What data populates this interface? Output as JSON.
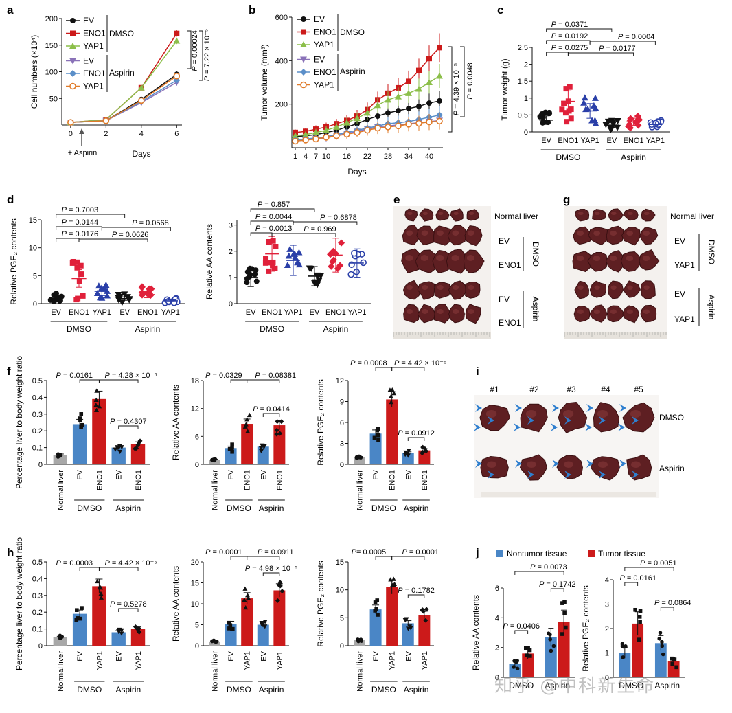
{
  "figure": {
    "watermark": "知乎 @中科新生命",
    "panels": {
      "a": "a",
      "b": "b",
      "c": "c",
      "d": "d",
      "e": "e",
      "f": "f",
      "g": "g",
      "h": "h",
      "i": "i",
      "j": "j"
    }
  },
  "chart_data": [
    {
      "id": "a",
      "type": "line",
      "ylabel": "Cell numbers (×10⁴)",
      "xlabel": "Days",
      "x": [
        0,
        2,
        4,
        6
      ],
      "ylim": [
        0,
        200
      ],
      "yticks": [
        50,
        100,
        150,
        200
      ],
      "xticks": [
        0,
        2,
        4,
        6
      ],
      "annotation": "+ Aspirin",
      "groups": [
        "DMSO",
        "Aspirin"
      ],
      "series": [
        {
          "name": "EV",
          "group": "DMSO",
          "color": "#111111",
          "marker": "circle",
          "values": [
            5,
            8,
            48,
            95
          ]
        },
        {
          "name": "ENO1",
          "group": "DMSO",
          "color": "#cc1a1a",
          "marker": "square",
          "values": [
            5,
            10,
            70,
            172
          ]
        },
        {
          "name": "YAP1",
          "group": "DMSO",
          "color": "#8cbf4a",
          "marker": "triangle",
          "values": [
            5,
            10,
            70,
            158
          ]
        },
        {
          "name": "EV",
          "group": "Aspirin",
          "color": "#8a72b8",
          "marker": "tri-down",
          "values": [
            5,
            8,
            42,
            80
          ]
        },
        {
          "name": "ENO1",
          "group": "Aspirin",
          "color": "#5b8fc9",
          "marker": "diamond",
          "values": [
            5,
            8,
            44,
            84
          ]
        },
        {
          "name": "YAP1",
          "group": "Aspirin",
          "color": "#e07b2a",
          "marker": "circle-open",
          "values": [
            5,
            8,
            46,
            92
          ]
        }
      ],
      "pvalues": [
        "P = 0.00024",
        "P = 7.22 × 10⁻⁵"
      ]
    },
    {
      "id": "b",
      "type": "line",
      "ylabel": "Tumor volume (mm³)",
      "xlabel": "Days",
      "x": [
        1,
        4,
        7,
        10,
        13,
        16,
        19,
        22,
        25,
        28,
        31,
        34,
        37,
        40,
        43
      ],
      "xticks": [
        1,
        4,
        7,
        10,
        16,
        22,
        28,
        34,
        40
      ],
      "ylim": [
        0,
        600
      ],
      "yticks": [
        200,
        400,
        600
      ],
      "groups": [
        "DMSO",
        "Aspirin"
      ],
      "series": [
        {
          "name": "EV",
          "group": "DMSO",
          "color": "#111111",
          "marker": "circle",
          "values": [
            50,
            55,
            60,
            70,
            80,
            95,
            110,
            130,
            145,
            160,
            170,
            180,
            190,
            205,
            215
          ]
        },
        {
          "name": "ENO1",
          "group": "DMSO",
          "color": "#cc1a1a",
          "marker": "square",
          "values": [
            70,
            75,
            85,
            95,
            110,
            125,
            145,
            175,
            220,
            250,
            275,
            305,
            355,
            410,
            460
          ]
        },
        {
          "name": "YAP1",
          "group": "DMSO",
          "color": "#8cbf4a",
          "marker": "triangle",
          "values": [
            55,
            60,
            70,
            80,
            95,
            115,
            135,
            160,
            195,
            220,
            235,
            250,
            270,
            300,
            330
          ]
        },
        {
          "name": "EV",
          "group": "Aspirin",
          "color": "#8a72b8",
          "marker": "tri-down",
          "values": [
            30,
            35,
            40,
            45,
            55,
            65,
            75,
            85,
            95,
            100,
            105,
            110,
            115,
            120,
            125
          ]
        },
        {
          "name": "ENO1",
          "group": "Aspirin",
          "color": "#5b8fc9",
          "marker": "diamond",
          "values": [
            35,
            40,
            45,
            50,
            60,
            70,
            80,
            90,
            100,
            110,
            115,
            120,
            130,
            140,
            150
          ]
        },
        {
          "name": "YAP1",
          "group": "Aspirin",
          "color": "#e07b2a",
          "marker": "circle-open",
          "values": [
            30,
            35,
            40,
            48,
            55,
            62,
            70,
            80,
            90,
            95,
            100,
            108,
            112,
            118,
            122
          ]
        }
      ],
      "pvalues": [
        "P = 4.39 × 10⁻⁵",
        "P = 0.0048"
      ]
    },
    {
      "id": "c",
      "type": "scatter",
      "ylabel": "Tumor weight (g)",
      "ylim": [
        0,
        2.5
      ],
      "yticks": [
        0,
        0.5,
        1.0,
        1.5,
        2.0,
        2.5
      ],
      "categories": [
        "EV",
        "ENO1",
        "YAP1",
        "EV",
        "ENO1",
        "YAP1"
      ],
      "groups": [
        "DMSO",
        "Aspirin"
      ],
      "means": [
        0.35,
        0.9,
        0.62,
        0.2,
        0.3,
        0.22
      ],
      "pvalues": [
        "P = 0.0371",
        "P = 0.0192",
        "P = 0.0275",
        "P = 0.0004",
        "P = 0.0177"
      ]
    },
    {
      "id": "d1",
      "type": "scatter",
      "ylabel": "Relative PGE₂ contents",
      "ylim": [
        0,
        15
      ],
      "yticks": [
        0,
        5,
        10,
        15
      ],
      "categories": [
        "EV",
        "ENO1",
        "YAP1",
        "EV",
        "ENO1",
        "YAP1"
      ],
      "groups": [
        "DMSO",
        "Aspirin"
      ],
      "means": [
        1.0,
        4.5,
        2.2,
        0.9,
        1.6,
        0.5
      ],
      "pvalues": [
        "P = 0.7003",
        "P = 0.0144",
        "P = 0.0176",
        "P = 0.0568",
        "P = 0.0626"
      ]
    },
    {
      "id": "d2",
      "type": "scatter",
      "ylabel": "Relative AA contents",
      "ylim": [
        0,
        3.2
      ],
      "yticks": [
        0,
        1.0,
        2.0,
        3.0
      ],
      "categories": [
        "EV",
        "ENO1",
        "YAP1",
        "EV",
        "ENO1",
        "YAP1"
      ],
      "groups": [
        "DMSO",
        "Aspirin"
      ],
      "means": [
        1.0,
        1.9,
        1.65,
        1.05,
        1.85,
        1.55
      ],
      "pvalues": [
        "P = 0.857",
        "P = 0.0044",
        "P = 0.0013",
        "P = 0.6878",
        "P = 0.969"
      ]
    },
    {
      "id": "f1",
      "type": "bar",
      "ylabel": "Percentage liver to body weight ratio",
      "ylim": [
        0,
        0.5
      ],
      "yticks": [
        0,
        0.1,
        0.2,
        0.3,
        0.4,
        0.5
      ],
      "categories": [
        "Normal liver",
        "EV",
        "ENO1",
        "EV",
        "ENO1"
      ],
      "groups": [
        "DMSO",
        "Aspirin"
      ],
      "values": [
        0.055,
        0.24,
        0.39,
        0.1,
        0.12
      ],
      "pvalues": [
        "P = 0.0161",
        "P = 4.28 × 10⁻⁵",
        "P = 0.4307"
      ]
    },
    {
      "id": "f2",
      "type": "bar",
      "ylabel": "Relative AA contents",
      "ylim": [
        0,
        18
      ],
      "yticks": [
        0,
        6,
        12,
        18
      ],
      "categories": [
        "Normal liver",
        "EV",
        "ENO1",
        "EV",
        "ENO1"
      ],
      "groups": [
        "DMSO",
        "Aspirin"
      ],
      "values": [
        1.0,
        3.5,
        8.7,
        3.8,
        8.4
      ],
      "pvalues": [
        "P = 0.0329",
        "P = 0.08381",
        "P = 0.0414"
      ]
    },
    {
      "id": "f3",
      "type": "bar",
      "ylabel": "Relative PGE₂ contents",
      "ylim": [
        0,
        12
      ],
      "yticks": [
        0,
        3,
        6,
        9,
        12
      ],
      "categories": [
        "Normal liver",
        "EV",
        "ENO1",
        "EV",
        "ENO1"
      ],
      "groups": [
        "DMSO",
        "Aspirin"
      ],
      "values": [
        1.0,
        4.4,
        9.3,
        1.6,
        2.0
      ],
      "pvalues": [
        "P = 0.0008",
        "P = 4.42 × 10⁻⁵",
        "P = 0.0912"
      ]
    },
    {
      "id": "h1",
      "type": "bar",
      "ylabel": "Percentage liver to body weight ratio",
      "ylim": [
        0,
        0.5
      ],
      "yticks": [
        0,
        0.1,
        0.2,
        0.3,
        0.4,
        0.5
      ],
      "categories": [
        "Normal liver",
        "EV",
        "YAP1",
        "EV",
        "YAP1"
      ],
      "groups": [
        "DMSO",
        "Aspirin"
      ],
      "values": [
        0.05,
        0.19,
        0.355,
        0.08,
        0.1
      ],
      "pvalues": [
        "P = 0.0003",
        "P = 4.42 × 10⁻⁵",
        "P = 0.5278"
      ]
    },
    {
      "id": "h2",
      "type": "bar",
      "ylabel": "Relative AA contents",
      "ylim": [
        0,
        20
      ],
      "yticks": [
        0,
        5,
        10,
        15,
        20
      ],
      "categories": [
        "Normal liver",
        "EV",
        "YAP1",
        "EV",
        "YAP1"
      ],
      "groups": [
        "DMSO",
        "Aspirin"
      ],
      "values": [
        1.0,
        5.2,
        11.3,
        5.0,
        13.2
      ],
      "pvalues": [
        "P = 0.0001",
        "P = 0.0911",
        "P = 4.98 × 10⁻⁵"
      ]
    },
    {
      "id": "h3",
      "type": "bar",
      "ylabel": "Relative PGE₂ contents",
      "ylim": [
        0,
        15
      ],
      "yticks": [
        0,
        5,
        10,
        15
      ],
      "categories": [
        "Normal liver",
        "EV",
        "YAP1",
        "EV",
        "YAP1"
      ],
      "groups": [
        "DMSO",
        "Aspirin"
      ],
      "values": [
        1.0,
        6.5,
        10.5,
        4.0,
        5.5
      ],
      "pvalues": [
        "P= 0.0005",
        "P = 0.0001",
        "P = 0.1782"
      ]
    },
    {
      "id": "j1",
      "type": "bar",
      "ylabel": "Relative AA contents",
      "ylim": [
        0,
        6
      ],
      "yticks": [
        0,
        2,
        4,
        6
      ],
      "categories": [
        "DMSO",
        "Aspirin"
      ],
      "series": [
        {
          "name": "Nontumor tissue",
          "color": "#4a86c6",
          "values": [
            0.9,
            2.7
          ]
        },
        {
          "name": "Tumor tissue",
          "color": "#cc1a1a",
          "values": [
            1.6,
            3.7
          ]
        }
      ],
      "pvalues": [
        "P = 0.0073",
        "P = 0.1742",
        "P = 0.0406"
      ]
    },
    {
      "id": "j2",
      "type": "bar",
      "ylabel": "Relative PGE₂ contents",
      "ylim": [
        0,
        4
      ],
      "yticks": [
        0,
        1,
        2,
        3,
        4
      ],
      "categories": [
        "DMSO",
        "Aspirin"
      ],
      "series": [
        {
          "name": "Nontumor tissue",
          "color": "#4a86c6",
          "values": [
            1.0,
            1.4
          ]
        },
        {
          "name": "Tumor tissue",
          "color": "#cc1a1a",
          "values": [
            2.2,
            0.65
          ]
        }
      ],
      "pvalues": [
        "P = 0.0051",
        "P = 0.0161",
        "P = 0.0864"
      ]
    }
  ],
  "photos": {
    "e": {
      "labels": [
        "Normal liver",
        "EV",
        "ENO1",
        "EV",
        "ENO1"
      ],
      "groups": [
        "DMSO",
        "Aspirin"
      ]
    },
    "g": {
      "labels": [
        "Normal liver",
        "EV",
        "YAP1",
        "EV",
        "YAP1"
      ],
      "groups": [
        "DMSO",
        "Aspirin"
      ]
    },
    "i": {
      "columns": [
        "#1",
        "#2",
        "#3",
        "#4",
        "#5"
      ],
      "rows": [
        "DMSO",
        "Aspirin"
      ]
    }
  },
  "legend_j": [
    "Nontumor tissue",
    "Tumor tissue"
  ]
}
